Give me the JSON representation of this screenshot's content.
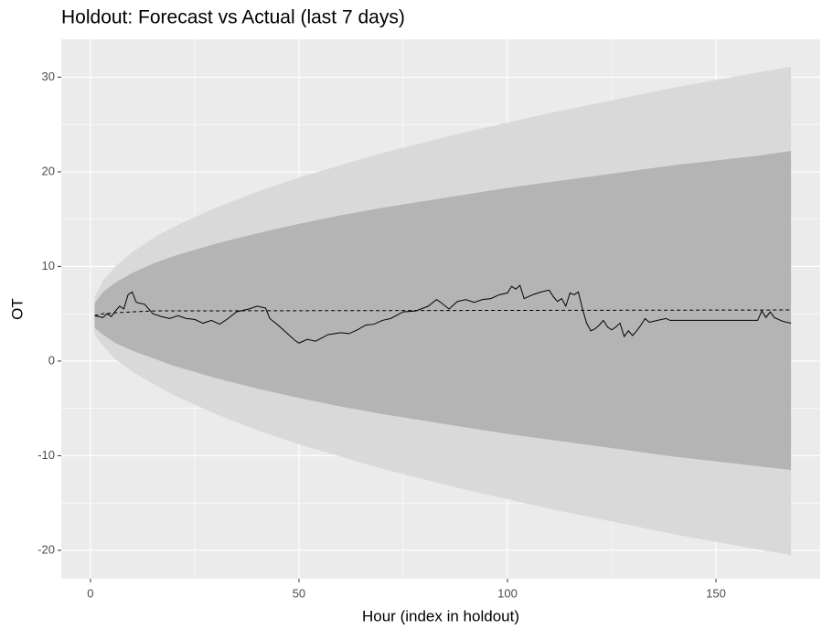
{
  "chart_data": {
    "type": "line",
    "title": "Holdout: Forecast vs Actual (last 7 days)",
    "x_label": "Hour (index in holdout)",
    "y_label": "OT",
    "xlim": [
      -7,
      175
    ],
    "ylim": [
      -23,
      34
    ],
    "xticks": [
      0,
      50,
      100,
      150
    ],
    "yticks": [
      -20,
      -10,
      0,
      10,
      20,
      30
    ],
    "grid": true,
    "bands": [
      {
        "color": "#d9d9d9",
        "x": [
          1,
          3,
          6,
          10,
          15,
          20,
          30,
          40,
          50,
          60,
          70,
          80,
          90,
          100,
          110,
          120,
          130,
          140,
          150,
          160,
          168
        ],
        "lower": [
          2.8,
          1.6,
          0.2,
          -1.1,
          -2.4,
          -3.6,
          -5.6,
          -7.3,
          -8.8,
          -10.1,
          -11.4,
          -12.5,
          -13.6,
          -14.6,
          -15.6,
          -16.5,
          -17.4,
          -18.3,
          -19.1,
          -19.9,
          -20.5
        ],
        "upper": [
          6.8,
          8.5,
          10.0,
          11.5,
          13.0,
          14.2,
          16.2,
          17.9,
          19.4,
          20.7,
          22.0,
          23.1,
          24.2,
          25.2,
          26.2,
          27.1,
          28.0,
          28.9,
          29.7,
          30.5,
          31.1
        ]
      },
      {
        "color": "#b4b4b4",
        "x": [
          1,
          3,
          6,
          10,
          15,
          20,
          30,
          40,
          50,
          60,
          70,
          80,
          90,
          100,
          110,
          120,
          130,
          140,
          150,
          160,
          168
        ],
        "lower": [
          3.5,
          2.8,
          1.9,
          1.1,
          0.3,
          -0.5,
          -1.8,
          -2.9,
          -3.9,
          -4.8,
          -5.6,
          -6.3,
          -7.0,
          -7.7,
          -8.3,
          -8.9,
          -9.5,
          -10.1,
          -10.6,
          -11.1,
          -11.5
        ],
        "upper": [
          6.1,
          7.3,
          8.3,
          9.3,
          10.3,
          11.1,
          12.4,
          13.5,
          14.5,
          15.4,
          16.2,
          16.9,
          17.6,
          18.3,
          18.9,
          19.5,
          20.1,
          20.7,
          21.2,
          21.7,
          22.2
        ]
      }
    ],
    "series": [
      {
        "color": "#000000",
        "dash": false,
        "x": [
          1,
          3,
          4,
          5,
          6,
          7,
          8,
          9,
          10,
          11,
          13,
          15,
          17,
          19,
          21,
          23,
          25,
          27,
          29,
          31,
          33,
          35,
          38,
          40,
          42,
          43,
          45,
          47,
          49,
          50,
          52,
          54,
          57,
          60,
          62,
          64,
          66,
          68,
          70,
          72,
          75,
          78,
          81,
          83,
          84,
          86,
          88,
          90,
          92,
          94,
          96,
          98,
          100,
          101,
          102,
          103,
          104,
          106,
          108,
          110,
          111,
          112,
          113,
          114,
          115,
          116,
          117,
          118,
          119,
          120,
          121,
          122,
          123,
          124,
          125,
          126,
          127,
          128,
          129,
          130,
          131,
          132,
          133,
          134,
          136,
          138,
          139,
          160,
          161,
          162,
          163,
          164,
          166,
          168
        ],
        "values": [
          4.8,
          4.6,
          5.0,
          4.7,
          5.3,
          5.8,
          5.5,
          7.0,
          7.3,
          6.2,
          6.0,
          5.0,
          4.7,
          4.5,
          4.8,
          4.5,
          4.4,
          4.0,
          4.3,
          3.9,
          4.5,
          5.2,
          5.5,
          5.8,
          5.6,
          4.5,
          3.8,
          3.0,
          2.2,
          1.9,
          2.3,
          2.1,
          2.8,
          3.0,
          2.9,
          3.3,
          3.8,
          3.9,
          4.3,
          4.5,
          5.2,
          5.3,
          5.8,
          6.5,
          6.2,
          5.5,
          6.3,
          6.5,
          6.2,
          6.5,
          6.6,
          7.0,
          7.2,
          7.9,
          7.6,
          8.0,
          6.6,
          7.0,
          7.3,
          7.5,
          6.8,
          6.3,
          6.6,
          5.8,
          7.2,
          7.0,
          7.3,
          5.5,
          4.0,
          3.2,
          3.4,
          3.8,
          4.3,
          3.6,
          3.3,
          3.6,
          4.0,
          2.6,
          3.2,
          2.7,
          3.2,
          3.8,
          4.5,
          4.1,
          4.3,
          4.5,
          4.3,
          4.3,
          5.3,
          4.6,
          5.2,
          4.6,
          4.2,
          4.0
        ]
      },
      {
        "color": "#000000",
        "dash": true,
        "x": [
          1,
          3,
          6,
          10,
          15,
          168
        ],
        "values": [
          4.8,
          5.0,
          5.1,
          5.2,
          5.3,
          5.4
        ]
      }
    ]
  }
}
